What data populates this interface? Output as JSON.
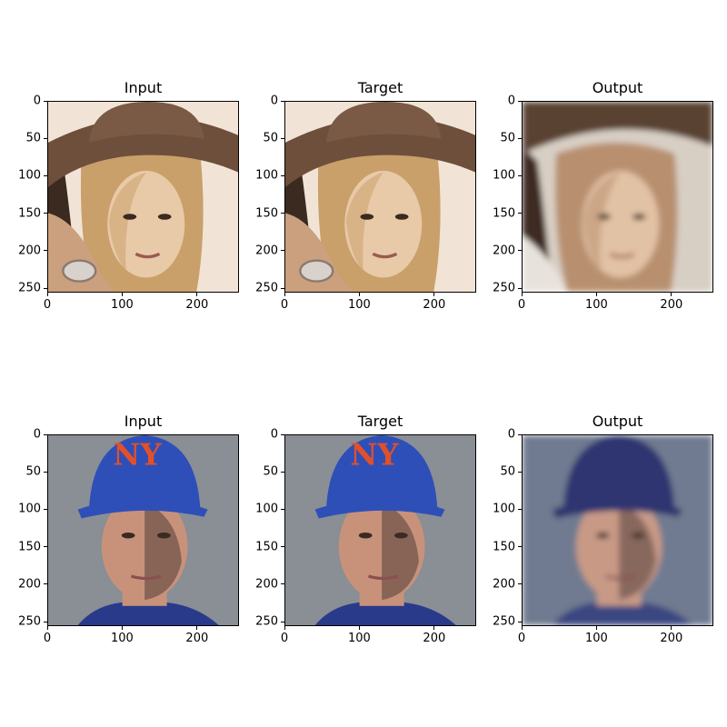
{
  "chart_data": [
    {
      "type": "image",
      "title": "Input",
      "xticks": [
        0,
        100,
        200
      ],
      "yticks": [
        0,
        50,
        100,
        150,
        200,
        250
      ],
      "xlim": [
        0,
        256
      ],
      "ylim": [
        256,
        0
      ],
      "image": "woman-with-brown-hat",
      "palette": [
        "#6e4f3c",
        "#c9a06a",
        "#e8c9a8",
        "#3a2a20",
        "#f1e4d6"
      ]
    },
    {
      "type": "image",
      "title": "Target",
      "xticks": [
        0,
        100,
        200
      ],
      "yticks": [
        0,
        50,
        100,
        150,
        200,
        250
      ],
      "xlim": [
        0,
        256
      ],
      "ylim": [
        256,
        0
      ],
      "image": "woman-with-brown-hat",
      "palette": [
        "#6e4f3c",
        "#c9a06a",
        "#e8c9a8",
        "#3a2a20",
        "#f1e4d6"
      ]
    },
    {
      "type": "image",
      "title": "Output",
      "xticks": [
        0,
        100,
        200
      ],
      "yticks": [
        0,
        50,
        100,
        150,
        200,
        250
      ],
      "xlim": [
        0,
        256
      ],
      "ylim": [
        256,
        0
      ],
      "image": "woman-reconstruction",
      "palette": [
        "#5a4232",
        "#b89070",
        "#e2c2a4",
        "#3d2c22",
        "#d8cfc4"
      ]
    },
    {
      "type": "image",
      "title": "Input",
      "xticks": [
        0,
        100,
        200
      ],
      "yticks": [
        0,
        50,
        100,
        150,
        200,
        250
      ],
      "xlim": [
        0,
        256
      ],
      "ylim": [
        256,
        0
      ],
      "image": "man-with-blue-cap",
      "palette": [
        "#2f4fb8",
        "#e2502a",
        "#c8927a",
        "#8a8e95",
        "#2a3a8a"
      ]
    },
    {
      "type": "image",
      "title": "Target",
      "xticks": [
        0,
        100,
        200
      ],
      "yticks": [
        0,
        50,
        100,
        150,
        200,
        250
      ],
      "xlim": [
        0,
        256
      ],
      "ylim": [
        256,
        0
      ],
      "image": "man-with-blue-cap",
      "palette": [
        "#2f4fb8",
        "#e2502a",
        "#c8927a",
        "#8a8e95",
        "#2a3a8a"
      ]
    },
    {
      "type": "image",
      "title": "Output",
      "xticks": [
        0,
        100,
        200
      ],
      "yticks": [
        0,
        50,
        100,
        150,
        200,
        250
      ],
      "xlim": [
        0,
        256
      ],
      "ylim": [
        256,
        0
      ],
      "image": "man-reconstruction",
      "palette": [
        "#2d3470",
        "#7a4a58",
        "#c89a86",
        "#6f7a90",
        "#3b4680"
      ]
    }
  ]
}
